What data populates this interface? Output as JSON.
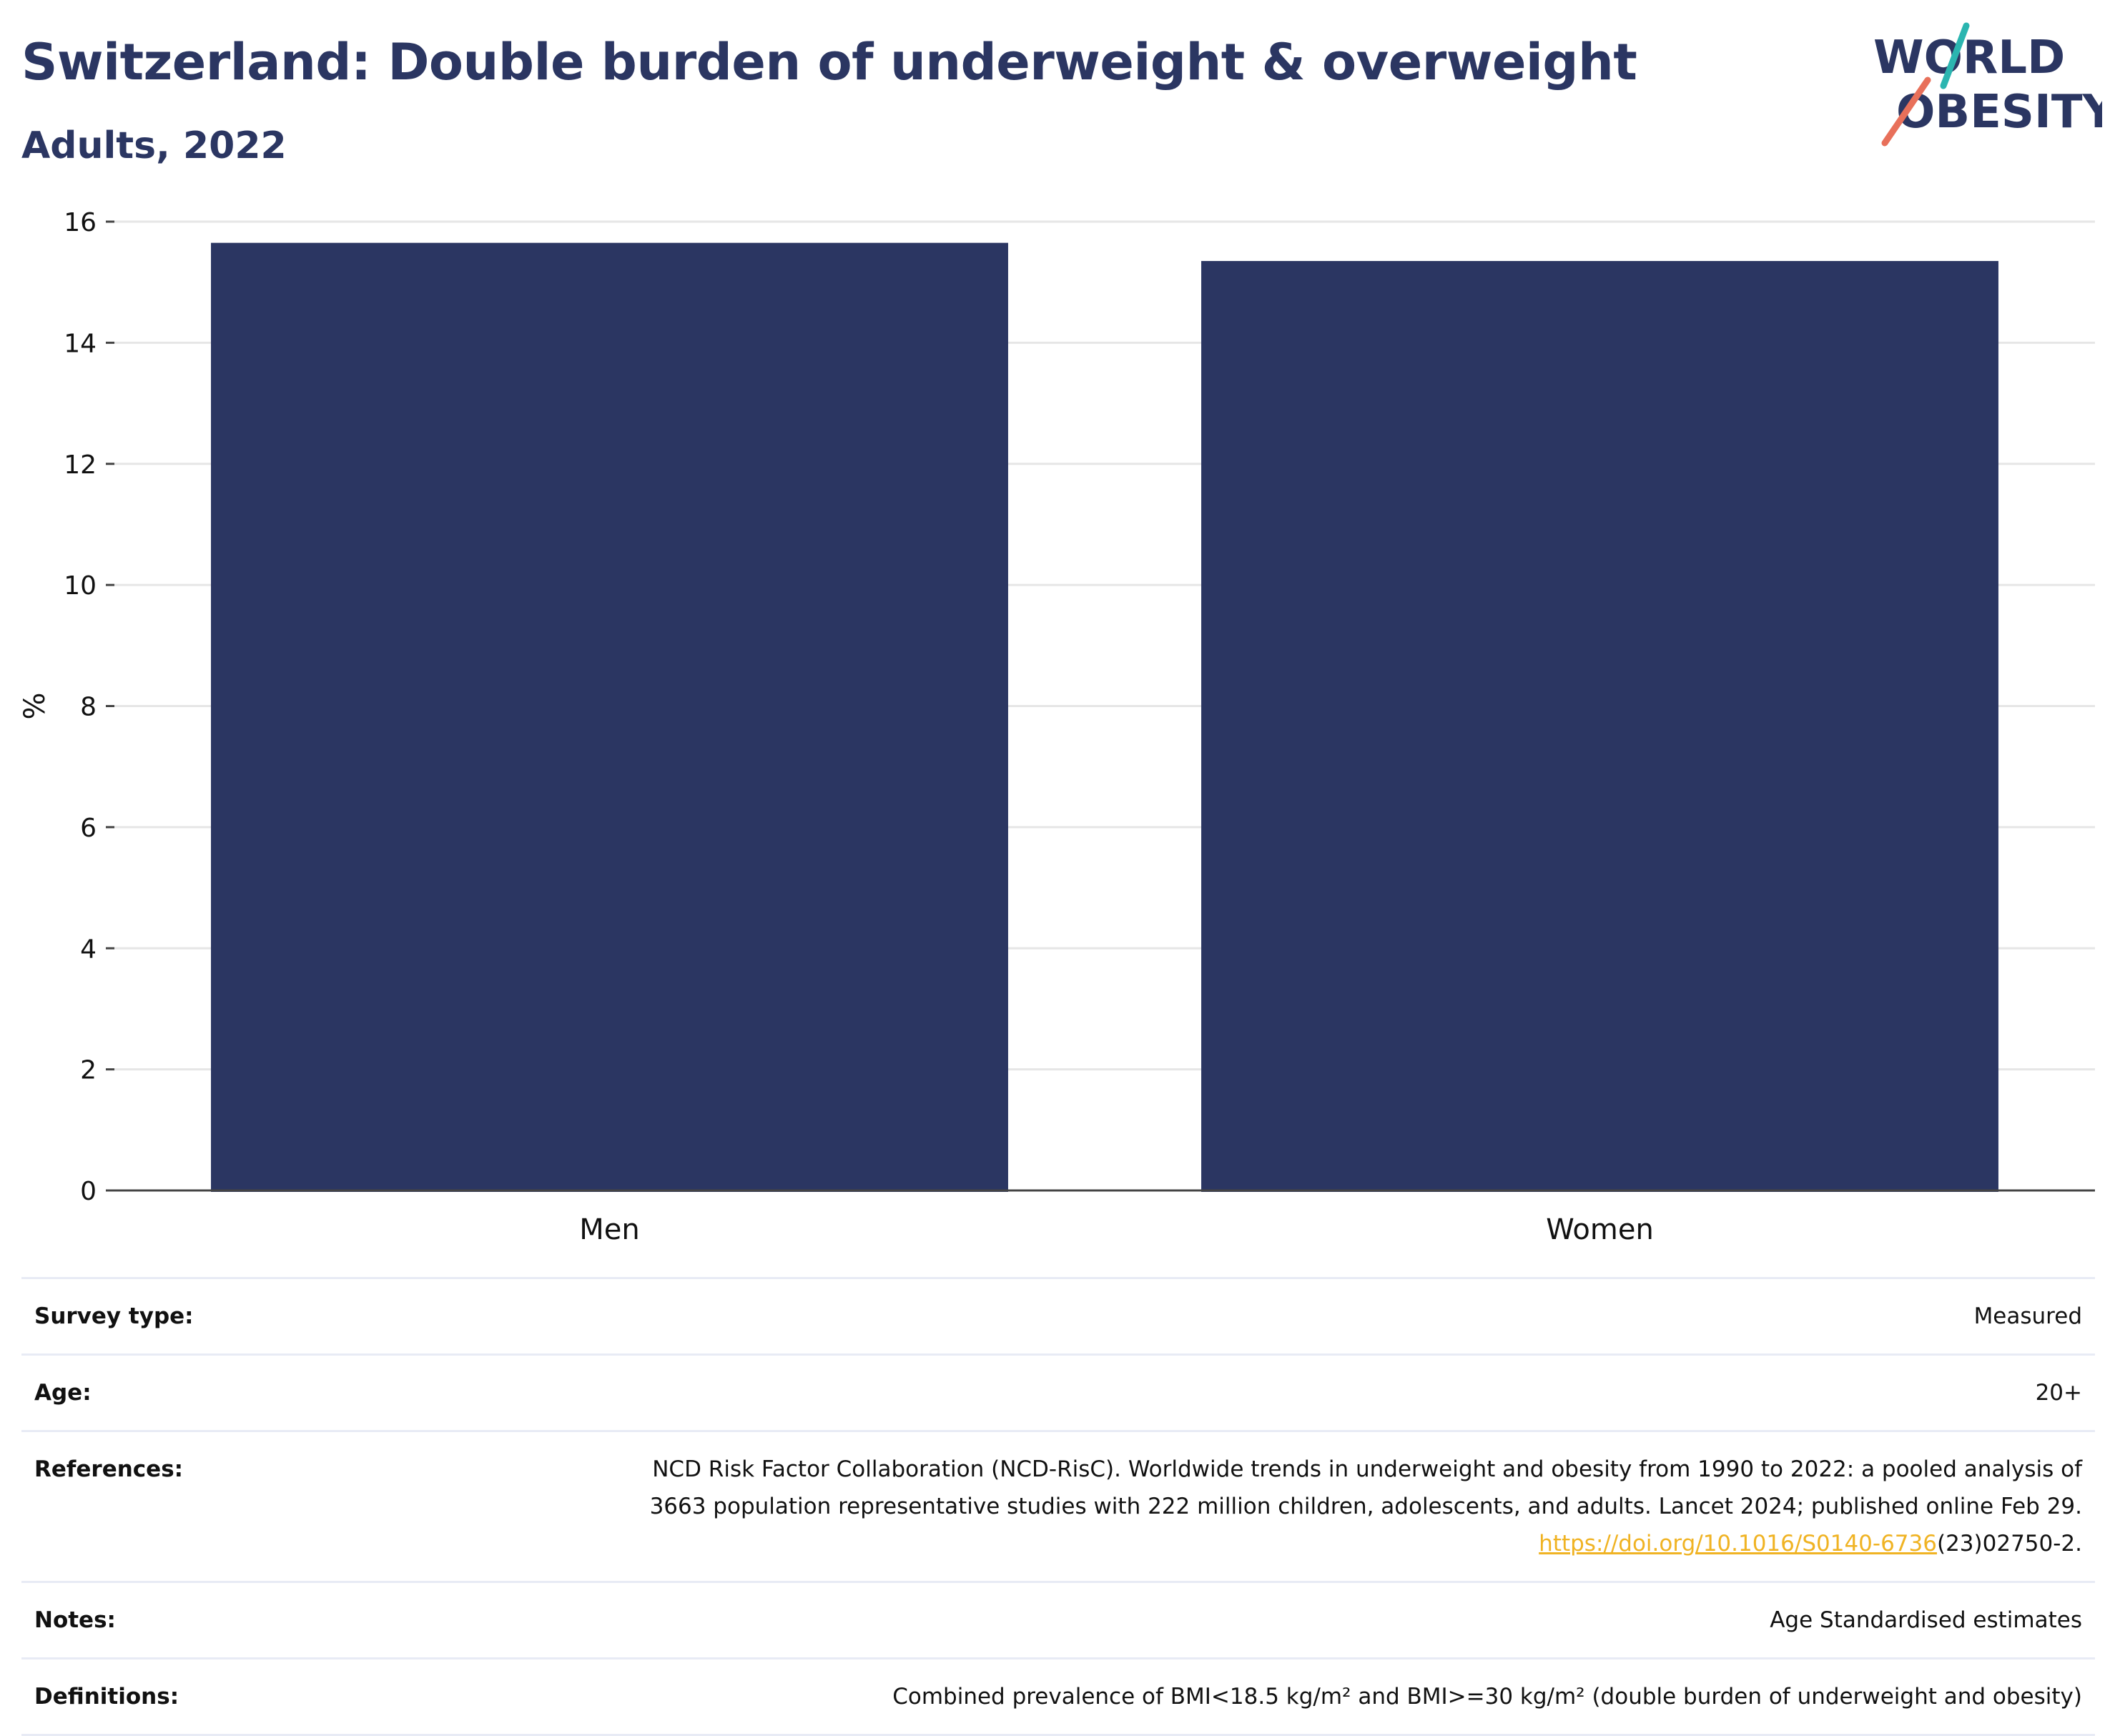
{
  "header": {
    "title": "Switzerland: Double burden of underweight & overweight",
    "subtitle": "Adults, 2022"
  },
  "logo": {
    "line1": "WORLD",
    "line2": "OBESITY",
    "colors": {
      "navy": "#2b3662",
      "teal": "#2bb5b0",
      "coral": "#e8705a"
    }
  },
  "chart_data": {
    "type": "bar",
    "categories": [
      "Men",
      "Women"
    ],
    "values": [
      15.65,
      15.35
    ],
    "title": "Switzerland: Double burden of underweight & overweight",
    "subtitle": "Adults, 2022",
    "xlabel": "",
    "ylabel": "%",
    "ylim": [
      0,
      16
    ],
    "yticks": [
      "0",
      "2",
      "4",
      "6",
      "8",
      "10",
      "12",
      "14",
      "16"
    ],
    "grid": true,
    "legend": "none",
    "bar_color": "#2b3662"
  },
  "meta": {
    "survey_type": {
      "label": "Survey type:",
      "value": "Measured"
    },
    "age": {
      "label": "Age:",
      "value": "20+"
    },
    "references": {
      "label": "References:",
      "line1": "NCD Risk Factor Collaboration (NCD-RisC). Worldwide trends in underweight and obesity from 1990 to 2022: a pooled analysis of",
      "line2": "3663 population representative studies with 222 million children, adolescents, and adults. Lancet 2024; published online Feb 29.",
      "link": "https://doi.org/10.1016/S0140-6736",
      "link_suffix": "(23)02750-2."
    },
    "notes": {
      "label": "Notes:",
      "value": "Age Standardised estimates"
    },
    "definitions": {
      "label": "Definitions:",
      "value": "Combined prevalence of BMI<18.5 kg/m² and BMI>=30 kg/m² (double burden of underweight and obesity)"
    }
  }
}
